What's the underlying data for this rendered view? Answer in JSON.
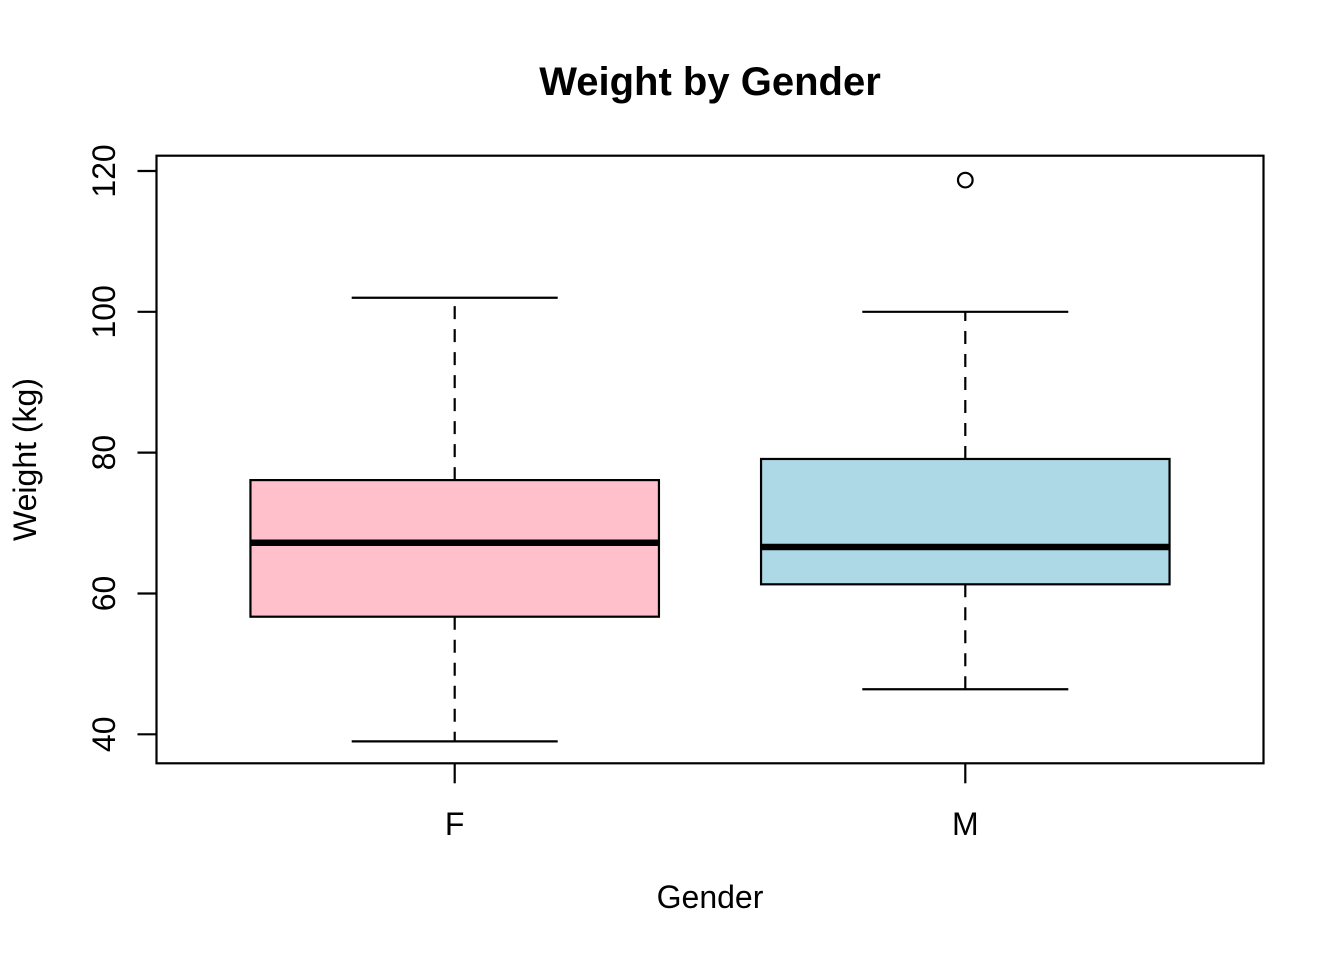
{
  "chart_data": {
    "type": "boxplot",
    "title": "Weight by Gender",
    "xlabel": "Gender",
    "ylabel": "Weight (kg)",
    "categories": [
      "F",
      "M"
    ],
    "y_ticks": [
      40,
      60,
      80,
      100,
      120
    ],
    "y_axis_range_approx": [
      36,
      122
    ],
    "grid": false,
    "legend": "none",
    "groups": [
      {
        "label": "F",
        "fill": "#FFC0CB",
        "whisker_low": 39,
        "q1": 56.7,
        "median": 67.2,
        "q3": 76.1,
        "whisker_high": 102,
        "outliers": []
      },
      {
        "label": "M",
        "fill": "#ADD8E6",
        "whisker_low": 46.4,
        "q1": 61.3,
        "median": 66.6,
        "q3": 79.1,
        "whisker_high": 100,
        "outliers": [
          118.7
        ]
      }
    ],
    "colors": {
      "stroke": "#000000",
      "background": "#FFFFFF",
      "box_fill_f": "#FFC0CB",
      "box_fill_m": "#ADD8E6"
    }
  }
}
